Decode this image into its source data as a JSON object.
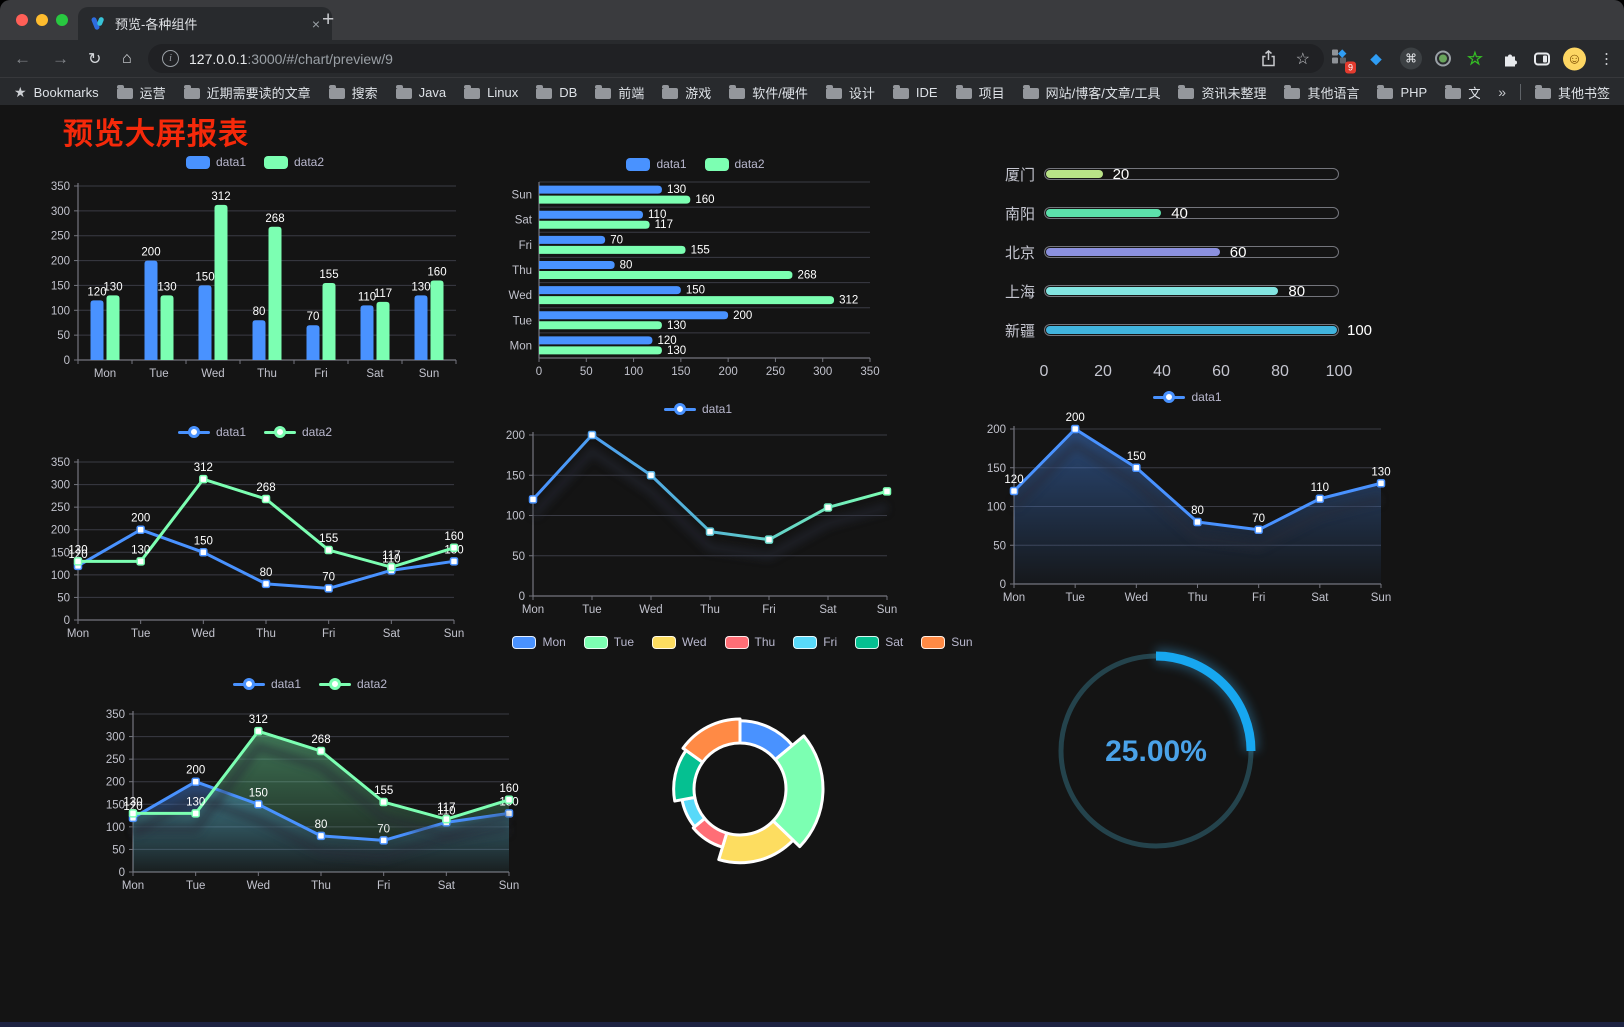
{
  "browser": {
    "tab_title": "预览-各种组件",
    "url_host": "127.0.0.1",
    "url_rest": ":3000/#/chart/preview/9",
    "bookmarks_label": "Bookmarks",
    "bookmark_folders": [
      "运营",
      "近期需要读的文章",
      "搜索",
      "Java",
      "Linux",
      "DB",
      "前端",
      "游戏",
      "软件/硬件",
      "设计",
      "IDE",
      "项目",
      "网站/博客/文章/工具",
      "资讯未整理",
      "其他语言",
      "PHP",
      "文件服务器"
    ],
    "other_bookmarks": "其他书签",
    "ext_badge": "9"
  },
  "icons": {
    "back": "←",
    "forward": "→",
    "reload": "↻",
    "home": "⌂",
    "info": "i",
    "star": "☆",
    "diamond": "◆",
    "command": "⌘",
    "green_star": "☆",
    "menu": "⋮",
    "avatar_face": "☺",
    "bookmarks_star": "★",
    "chevron": "»",
    "plus": "+",
    "close": "×"
  },
  "page": {
    "title": "预览大屏报表"
  },
  "colors": {
    "series_blue": "#4992ff",
    "series_green": "#7cffb2",
    "axis_text": "#c2c3cd",
    "label_white": "#ffffff",
    "gauge_blue": "#17a7f0",
    "gauge_track": "#24434c",
    "gauge_text": "#4aa2e8"
  },
  "chart_data": [
    {
      "id": "bar-grouped",
      "type": "bar",
      "categories": [
        "Mon",
        "Tue",
        "Wed",
        "Thu",
        "Fri",
        "Sat",
        "Sun"
      ],
      "series": [
        {
          "name": "data1",
          "color": "#4992ff",
          "values": [
            120,
            200,
            150,
            80,
            70,
            110,
            130
          ]
        },
        {
          "name": "data2",
          "color": "#7cffb2",
          "values": [
            130,
            130,
            312,
            268,
            155,
            117,
            160
          ]
        }
      ],
      "ylim": [
        0,
        350
      ],
      "ytick_step": 50,
      "legend_position": "top",
      "grid": true
    },
    {
      "id": "bar-horizontal",
      "type": "hbar",
      "categories": [
        "Mon",
        "Tue",
        "Wed",
        "Thu",
        "Fri",
        "Sat",
        "Sun"
      ],
      "display_order_top_to_bottom": [
        "Sun",
        "Sat",
        "Fri",
        "Thu",
        "Wed",
        "Tue",
        "Mon"
      ],
      "series": [
        {
          "name": "data1",
          "color": "#4992ff",
          "values": [
            120,
            200,
            150,
            80,
            70,
            110,
            130
          ]
        },
        {
          "name": "data2",
          "color": "#7cffb2",
          "values": [
            130,
            130,
            312,
            268,
            155,
            117,
            160
          ]
        }
      ],
      "xlim": [
        0,
        350
      ],
      "xtick_step": 50,
      "legend_position": "top",
      "grid": true
    },
    {
      "id": "progress-bars",
      "type": "progress",
      "items": [
        {
          "label": "厦门",
          "value": 20,
          "color": "#b9e387"
        },
        {
          "label": "南阳",
          "value": 40,
          "color": "#5ce0ab"
        },
        {
          "label": "北京",
          "value": 60,
          "color": "#8b90de"
        },
        {
          "label": "上海",
          "value": 80,
          "color": "#83e5e1"
        },
        {
          "label": "新疆",
          "value": 100,
          "color": "#41b4de"
        }
      ],
      "xlim": [
        0,
        100
      ],
      "xticks": [
        0,
        20,
        40,
        60,
        80,
        100
      ]
    },
    {
      "id": "line-two",
      "type": "line",
      "categories": [
        "Mon",
        "Tue",
        "Wed",
        "Thu",
        "Fri",
        "Sat",
        "Sun"
      ],
      "series": [
        {
          "name": "data1",
          "color": "#4992ff",
          "values": [
            120,
            200,
            150,
            80,
            70,
            110,
            130
          ]
        },
        {
          "name": "data2",
          "color": "#7cffb2",
          "values": [
            130,
            130,
            312,
            268,
            155,
            117,
            160
          ]
        }
      ],
      "ylim": [
        0,
        350
      ],
      "ytick_step": 50,
      "labels": true,
      "area": false,
      "legend_position": "top"
    },
    {
      "id": "line-gradient",
      "type": "line",
      "categories": [
        "Mon",
        "Tue",
        "Wed",
        "Thu",
        "Fri",
        "Sat",
        "Sun"
      ],
      "series": [
        {
          "name": "data1",
          "color": "#4992ff",
          "color_end": "#7cffb2",
          "values": [
            120,
            200,
            150,
            80,
            70,
            110,
            130
          ]
        }
      ],
      "ylim": [
        0,
        200
      ],
      "ytick_step": 50,
      "labels": false,
      "area": false,
      "gradient_stroke": true,
      "shadow": true,
      "legend_position": "top"
    },
    {
      "id": "line-area-single",
      "type": "line",
      "categories": [
        "Mon",
        "Tue",
        "Wed",
        "Thu",
        "Fri",
        "Sat",
        "Sun"
      ],
      "series": [
        {
          "name": "data1",
          "color": "#4992ff",
          "values": [
            120,
            200,
            150,
            80,
            70,
            110,
            130
          ]
        }
      ],
      "ylim": [
        0,
        200
      ],
      "ytick_step": 50,
      "labels": true,
      "area": true,
      "shadow": true,
      "legend_position": "top"
    },
    {
      "id": "line-area-two",
      "type": "line",
      "categories": [
        "Mon",
        "Tue",
        "Wed",
        "Thu",
        "Fri",
        "Sat",
        "Sun"
      ],
      "series": [
        {
          "name": "data1",
          "color": "#4992ff",
          "values": [
            120,
            200,
            150,
            80,
            70,
            110,
            130
          ]
        },
        {
          "name": "data2",
          "color": "#7cffb2",
          "values": [
            130,
            130,
            312,
            268,
            155,
            117,
            160
          ]
        }
      ],
      "ylim": [
        0,
        350
      ],
      "ytick_step": 50,
      "labels": true,
      "area": true,
      "shadow": true,
      "legend_position": "top"
    },
    {
      "id": "pie-rose",
      "type": "pie",
      "items": [
        {
          "label": "Mon",
          "value": 120,
          "color": "#4992ff"
        },
        {
          "label": "Tue",
          "value": 200,
          "color": "#7cffb2"
        },
        {
          "label": "Wed",
          "value": 150,
          "color": "#fddd60"
        },
        {
          "label": "Thu",
          "value": 80,
          "color": "#ff6e76"
        },
        {
          "label": "Fri",
          "value": 70,
          "color": "#58d9f9"
        },
        {
          "label": "Sat",
          "value": 110,
          "color": "#05c091"
        },
        {
          "label": "Sun",
          "value": 130,
          "color": "#ff8a45"
        }
      ],
      "donut": true,
      "rose": true,
      "legend_position": "top"
    },
    {
      "id": "gauge",
      "type": "gauge",
      "value": 25,
      "display": "25.00%",
      "color": "#17a7f0",
      "track_color": "#24434c",
      "text_color": "#4aa2e8"
    }
  ]
}
